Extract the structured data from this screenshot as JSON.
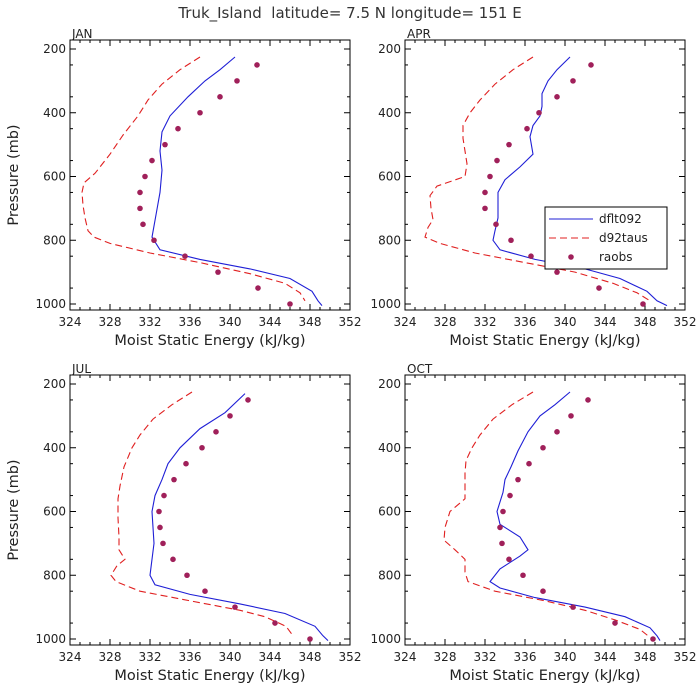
{
  "title": "Truk_Island  latitude= 7.5 N longitude= 151 E",
  "colors": {
    "model": "#1f1fd6",
    "taus": "#e02020",
    "obs": "#a0205a",
    "axis": "#000000"
  },
  "legend": {
    "items": [
      "dflt092",
      "d92taus",
      "raobs"
    ],
    "placement": "right-center (APR panel)"
  },
  "chart_data": [
    {
      "type": "line",
      "panel_label": "JAN",
      "xlabel": "Moist Static Energy (kJ/kg)",
      "ylabel": "Pressure (mb)",
      "xlim": [
        324,
        352
      ],
      "ylim": [
        1000,
        200
      ],
      "inverted_y": true,
      "x_ticks": [
        324,
        328,
        332,
        336,
        340,
        344,
        348,
        352
      ],
      "y_ticks": [
        200,
        400,
        600,
        800,
        1000
      ],
      "series": [
        {
          "name": "dflt092",
          "style": "solid",
          "points": [
            [
              340.5,
              225
            ],
            [
              339,
              265
            ],
            [
              337.5,
              300
            ],
            [
              335.8,
              350
            ],
            [
              334,
              410
            ],
            [
              333.2,
              460
            ],
            [
              333,
              520
            ],
            [
              333.2,
              580
            ],
            [
              333,
              650
            ],
            [
              332.6,
              720
            ],
            [
              332.2,
              790
            ],
            [
              333,
              830
            ],
            [
              337,
              860
            ],
            [
              342,
              890
            ],
            [
              346,
              920
            ],
            [
              348.2,
              960
            ],
            [
              348.8,
              990
            ],
            [
              349.2,
              1005
            ]
          ]
        },
        {
          "name": "d92taus",
          "style": "dashed",
          "points": [
            [
              337,
              225
            ],
            [
              335,
              265
            ],
            [
              333.2,
              310
            ],
            [
              331.8,
              360
            ],
            [
              330.8,
              410
            ],
            [
              329.3,
              470
            ],
            [
              328,
              530
            ],
            [
              326.5,
              590
            ],
            [
              325.4,
              620
            ],
            [
              325.2,
              650
            ],
            [
              325.3,
              690
            ],
            [
              325.5,
              730
            ],
            [
              325.8,
              770
            ],
            [
              326.4,
              790
            ],
            [
              328,
              810
            ],
            [
              332,
              840
            ],
            [
              337,
              870
            ],
            [
              342,
              905
            ],
            [
              345.5,
              935
            ],
            [
              347,
              965
            ],
            [
              347.5,
              990
            ]
          ]
        },
        {
          "name": "raobs",
          "style": "markers",
          "points": [
            [
              342.7,
              250
            ],
            [
              340.7,
              300
            ],
            [
              339,
              350
            ],
            [
              337,
              400
            ],
            [
              334.8,
              450
            ],
            [
              333.5,
              500
            ],
            [
              332.2,
              550
            ],
            [
              331.5,
              600
            ],
            [
              331,
              650
            ],
            [
              331,
              700
            ],
            [
              331.3,
              750
            ],
            [
              332.4,
              800
            ],
            [
              335.5,
              850
            ],
            [
              338.8,
              900
            ],
            [
              342.8,
              950
            ],
            [
              346,
              1000
            ]
          ]
        }
      ]
    },
    {
      "type": "line",
      "panel_label": "APR",
      "xlabel": "Moist Static Energy (kJ/kg)",
      "ylabel": "",
      "xlim": [
        324,
        352
      ],
      "ylim": [
        1000,
        200
      ],
      "inverted_y": true,
      "x_ticks": [
        324,
        328,
        332,
        336,
        340,
        344,
        348,
        352
      ],
      "y_ticks": [
        200,
        400,
        600,
        800,
        1000
      ],
      "series": [
        {
          "name": "dflt092",
          "style": "solid",
          "points": [
            [
              340.5,
              225
            ],
            [
              339.2,
              265
            ],
            [
              338.3,
              300
            ],
            [
              337.7,
              340
            ],
            [
              337.7,
              380
            ],
            [
              337.5,
              410
            ],
            [
              336.8,
              440
            ],
            [
              336.5,
              475
            ],
            [
              336.8,
              530
            ],
            [
              335.5,
              570
            ],
            [
              334,
              610
            ],
            [
              333.3,
              650
            ],
            [
              333.3,
              690
            ],
            [
              333.3,
              730
            ],
            [
              333,
              770
            ],
            [
              332.8,
              800
            ],
            [
              333.5,
              830
            ],
            [
              337,
              860
            ],
            [
              342,
              890
            ],
            [
              345.5,
              920
            ],
            [
              348.2,
              960
            ],
            [
              349.2,
              990
            ],
            [
              350.2,
              1005
            ]
          ]
        },
        {
          "name": "d92taus",
          "style": "dashed",
          "points": [
            [
              336.8,
              225
            ],
            [
              334.8,
              265
            ],
            [
              333,
              310
            ],
            [
              331.5,
              360
            ],
            [
              330.5,
              400
            ],
            [
              329.8,
              440
            ],
            [
              329.8,
              480
            ],
            [
              330,
              520
            ],
            [
              330.2,
              560
            ],
            [
              330,
              600
            ],
            [
              327.2,
              630
            ],
            [
              326.5,
              660
            ],
            [
              326.6,
              700
            ],
            [
              326.8,
              735
            ],
            [
              326.3,
              760
            ],
            [
              326,
              790
            ],
            [
              327.5,
              810
            ],
            [
              331,
              840
            ],
            [
              336,
              870
            ],
            [
              341,
              900
            ],
            [
              344.8,
              935
            ],
            [
              347.2,
              965
            ],
            [
              348.5,
              990
            ]
          ]
        },
        {
          "name": "raobs",
          "style": "markers",
          "points": [
            [
              342.6,
              250
            ],
            [
              340.8,
              300
            ],
            [
              339.2,
              350
            ],
            [
              337.4,
              400
            ],
            [
              336.2,
              450
            ],
            [
              334.4,
              500
            ],
            [
              333.2,
              550
            ],
            [
              332.5,
              600
            ],
            [
              332,
              650
            ],
            [
              332,
              700
            ],
            [
              333.1,
              750
            ],
            [
              334.6,
              800
            ],
            [
              336.6,
              850
            ],
            [
              339.2,
              900
            ],
            [
              343.4,
              950
            ],
            [
              347.8,
              1000
            ]
          ]
        }
      ]
    },
    {
      "type": "line",
      "panel_label": "JUL",
      "xlabel": "Moist Static Energy (kJ/kg)",
      "ylabel": "Pressure (mb)",
      "xlim": [
        324,
        352
      ],
      "ylim": [
        1000,
        200
      ],
      "inverted_y": true,
      "x_ticks": [
        324,
        328,
        332,
        336,
        340,
        344,
        348,
        352
      ],
      "y_ticks": [
        200,
        400,
        600,
        800,
        1000
      ],
      "series": [
        {
          "name": "dflt092",
          "style": "solid",
          "points": [
            [
              341.5,
              230
            ],
            [
              339.5,
              290
            ],
            [
              337,
              340
            ],
            [
              335,
              400
            ],
            [
              333.8,
              450
            ],
            [
              333.2,
              500
            ],
            [
              332.5,
              550
            ],
            [
              332.2,
              600
            ],
            [
              332.3,
              650
            ],
            [
              332.4,
              700
            ],
            [
              332.2,
              750
            ],
            [
              332,
              800
            ],
            [
              332.5,
              830
            ],
            [
              336,
              860
            ],
            [
              341,
              890
            ],
            [
              345.5,
              920
            ],
            [
              348.5,
              960
            ],
            [
              349.3,
              990
            ],
            [
              349.8,
              1005
            ]
          ]
        },
        {
          "name": "d92taus",
          "style": "dashed",
          "points": [
            [
              336.2,
              225
            ],
            [
              334.2,
              265
            ],
            [
              332.3,
              310
            ],
            [
              331,
              360
            ],
            [
              330.2,
              400
            ],
            [
              329.4,
              460
            ],
            [
              329,
              520
            ],
            [
              328.8,
              560
            ],
            [
              328.8,
              620
            ],
            [
              328.9,
              680
            ],
            [
              328.9,
              720
            ],
            [
              329.5,
              750
            ],
            [
              328.7,
              770
            ],
            [
              328.1,
              800
            ],
            [
              328.6,
              820
            ],
            [
              331,
              850
            ],
            [
              336,
              880
            ],
            [
              341,
              910
            ],
            [
              343.5,
              930
            ],
            [
              345.6,
              960
            ],
            [
              346.3,
              990
            ]
          ]
        },
        {
          "name": "raobs",
          "style": "markers",
          "points": [
            [
              341.8,
              250
            ],
            [
              340,
              300
            ],
            [
              338.6,
              350
            ],
            [
              337.2,
              400
            ],
            [
              335.6,
              450
            ],
            [
              334.4,
              500
            ],
            [
              333.4,
              550
            ],
            [
              332.9,
              600
            ],
            [
              333,
              650
            ],
            [
              333.3,
              700
            ],
            [
              334.3,
              750
            ],
            [
              335.7,
              800
            ],
            [
              337.5,
              850
            ],
            [
              340.5,
              900
            ],
            [
              344.5,
              950
            ],
            [
              348,
              1000
            ]
          ]
        }
      ]
    },
    {
      "type": "line",
      "panel_label": "OCT",
      "xlabel": "Moist Static Energy (kJ/kg)",
      "ylabel": "",
      "xlim": [
        324,
        352
      ],
      "ylim": [
        1000,
        200
      ],
      "inverted_y": true,
      "x_ticks": [
        324,
        328,
        332,
        336,
        340,
        344,
        348,
        352
      ],
      "y_ticks": [
        200,
        400,
        600,
        800,
        1000
      ],
      "series": [
        {
          "name": "dflt092",
          "style": "solid",
          "points": [
            [
              340.5,
              225
            ],
            [
              339,
              265
            ],
            [
              337.5,
              300
            ],
            [
              336.3,
              350
            ],
            [
              335.3,
              410
            ],
            [
              334.6,
              460
            ],
            [
              334,
              500
            ],
            [
              333.8,
              540
            ],
            [
              333.5,
              570
            ],
            [
              333.2,
              600
            ],
            [
              333.5,
              640
            ],
            [
              335.5,
              680
            ],
            [
              336.3,
              720
            ],
            [
              335.5,
              740
            ],
            [
              333.5,
              780
            ],
            [
              332.5,
              820
            ],
            [
              333.5,
              840
            ],
            [
              337,
              870
            ],
            [
              342,
              900
            ],
            [
              346,
              930
            ],
            [
              348.5,
              965
            ],
            [
              349.2,
              990
            ],
            [
              349.5,
              1005
            ]
          ]
        },
        {
          "name": "d92taus",
          "style": "dashed",
          "points": [
            [
              336.8,
              225
            ],
            [
              334.7,
              265
            ],
            [
              332.8,
              310
            ],
            [
              331.5,
              360
            ],
            [
              330.7,
              400
            ],
            [
              330.1,
              440
            ],
            [
              330,
              480
            ],
            [
              330,
              520
            ],
            [
              330,
              560
            ],
            [
              328.5,
              600
            ],
            [
              328,
              650
            ],
            [
              327.9,
              690
            ],
            [
              329,
              720
            ],
            [
              330,
              750
            ],
            [
              330,
              790
            ],
            [
              330.3,
              820
            ],
            [
              333,
              850
            ],
            [
              338,
              880
            ],
            [
              342,
              910
            ],
            [
              345,
              940
            ],
            [
              347.5,
              970
            ],
            [
              348.5,
              995
            ]
          ]
        },
        {
          "name": "raobs",
          "style": "markers",
          "points": [
            [
              342.3,
              250
            ],
            [
              340.6,
              300
            ],
            [
              339.2,
              350
            ],
            [
              337.8,
              400
            ],
            [
              336.4,
              450
            ],
            [
              335.3,
              500
            ],
            [
              334.5,
              550
            ],
            [
              333.8,
              600
            ],
            [
              333.5,
              650
            ],
            [
              333.7,
              700
            ],
            [
              334.4,
              750
            ],
            [
              335.8,
              800
            ],
            [
              337.8,
              850
            ],
            [
              340.8,
              900
            ],
            [
              345,
              950
            ],
            [
              348.8,
              1000
            ]
          ]
        }
      ]
    }
  ]
}
